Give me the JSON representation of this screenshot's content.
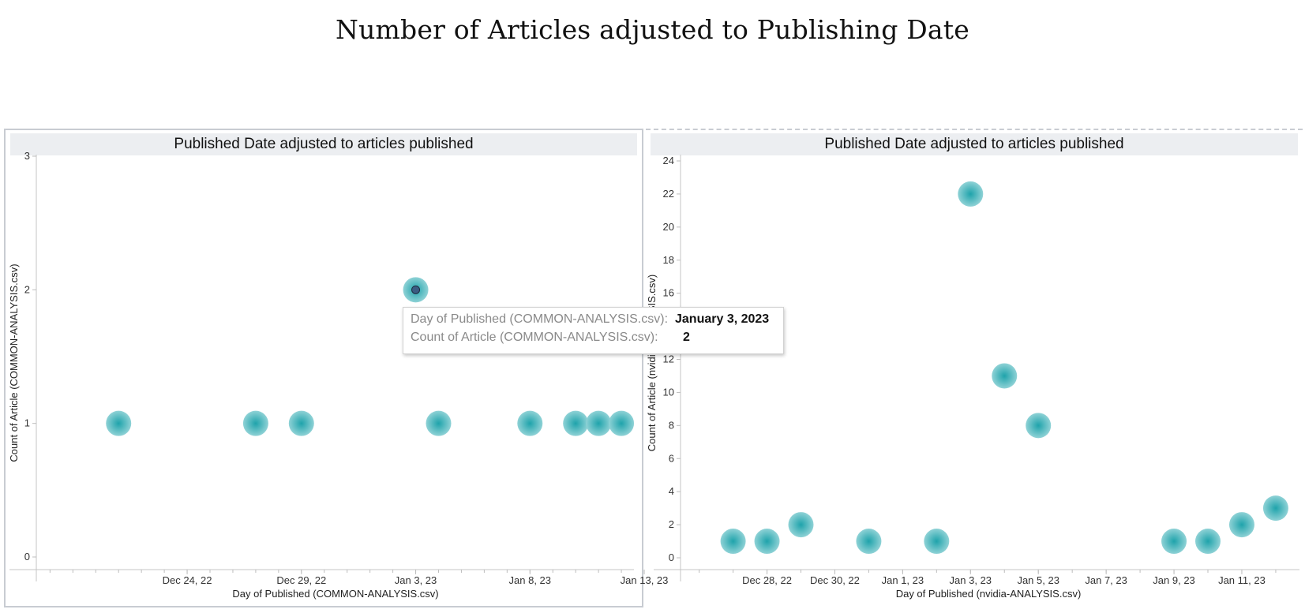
{
  "page_title": "Number of Articles adjusted to Publishing Date",
  "colors": {
    "bubble_center": "#1fa3ab",
    "bubble_edge": "#8fd2d6",
    "selected_dot": "#3b5c82",
    "header_bg": "#eceef1"
  },
  "tooltip": {
    "row1_label": "Day of Published (COMMON-ANALYSIS.csv):",
    "row1_value": "January 3, 2023",
    "row2_label": "Count of Article (COMMON-ANALYSIS.csv):",
    "row2_value": "2"
  },
  "chart_data": [
    {
      "type": "scatter",
      "title": "Published Date adjusted to articles published",
      "xlabel": "Day of Published (COMMON-ANALYSIS.csv)",
      "ylabel": "Count of Article (COMMON-ANALYSIS.csv)",
      "xlim": [
        "2022-12-18",
        "2023-01-13"
      ],
      "ylim": [
        0,
        3
      ],
      "yticks": [
        "0",
        "1",
        "2",
        "3"
      ],
      "xticks": [
        {
          "date": "2022-12-24",
          "label": "Dec 24, 22"
        },
        {
          "date": "2022-12-29",
          "label": "Dec 29, 22"
        },
        {
          "date": "2023-01-03",
          "label": "Jan 3, 23"
        },
        {
          "date": "2023-01-08",
          "label": "Jan 8, 23"
        },
        {
          "date": "2023-01-13",
          "label": "Jan 13, 23"
        }
      ],
      "points": [
        {
          "date": "2022-12-21",
          "count": 1
        },
        {
          "date": "2022-12-27",
          "count": 1
        },
        {
          "date": "2022-12-29",
          "count": 1
        },
        {
          "date": "2023-01-03",
          "count": 2,
          "selected": true
        },
        {
          "date": "2023-01-04",
          "count": 1
        },
        {
          "date": "2023-01-08",
          "count": 1
        },
        {
          "date": "2023-01-10",
          "count": 1
        },
        {
          "date": "2023-01-11",
          "count": 1
        },
        {
          "date": "2023-01-12",
          "count": 1
        }
      ]
    },
    {
      "type": "scatter",
      "title": "Published Date adjusted to articles published",
      "xlabel": "Day of Published (nvidia-ANALYSIS.csv)",
      "ylabel": "Count of Article (nvidia-ANALYSIS.csv)",
      "xlim": [
        "2022-12-26",
        "2023-01-13"
      ],
      "ylim": [
        0,
        24
      ],
      "yticks": [
        "0",
        "2",
        "4",
        "6",
        "8",
        "10",
        "12",
        "14",
        "16",
        "18",
        "20",
        "22",
        "24"
      ],
      "xticks": [
        {
          "date": "2022-12-28",
          "label": "Dec 28, 22"
        },
        {
          "date": "2022-12-30",
          "label": "Dec 30, 22"
        },
        {
          "date": "2023-01-01",
          "label": "Jan 1, 23"
        },
        {
          "date": "2023-01-03",
          "label": "Jan 3, 23"
        },
        {
          "date": "2023-01-05",
          "label": "Jan 5, 23"
        },
        {
          "date": "2023-01-07",
          "label": "Jan 7, 23"
        },
        {
          "date": "2023-01-09",
          "label": "Jan 9, 23"
        },
        {
          "date": "2023-01-11",
          "label": "Jan 11, 23"
        }
      ],
      "points": [
        {
          "date": "2022-12-27",
          "count": 1
        },
        {
          "date": "2022-12-28",
          "count": 1
        },
        {
          "date": "2022-12-29",
          "count": 2
        },
        {
          "date": "2022-12-31",
          "count": 1
        },
        {
          "date": "2023-01-02",
          "count": 1
        },
        {
          "date": "2023-01-03",
          "count": 22
        },
        {
          "date": "2023-01-04",
          "count": 11
        },
        {
          "date": "2023-01-05",
          "count": 8
        },
        {
          "date": "2023-01-09",
          "count": 1
        },
        {
          "date": "2023-01-10",
          "count": 1
        },
        {
          "date": "2023-01-11",
          "count": 2
        },
        {
          "date": "2023-01-12",
          "count": 3
        }
      ]
    }
  ]
}
